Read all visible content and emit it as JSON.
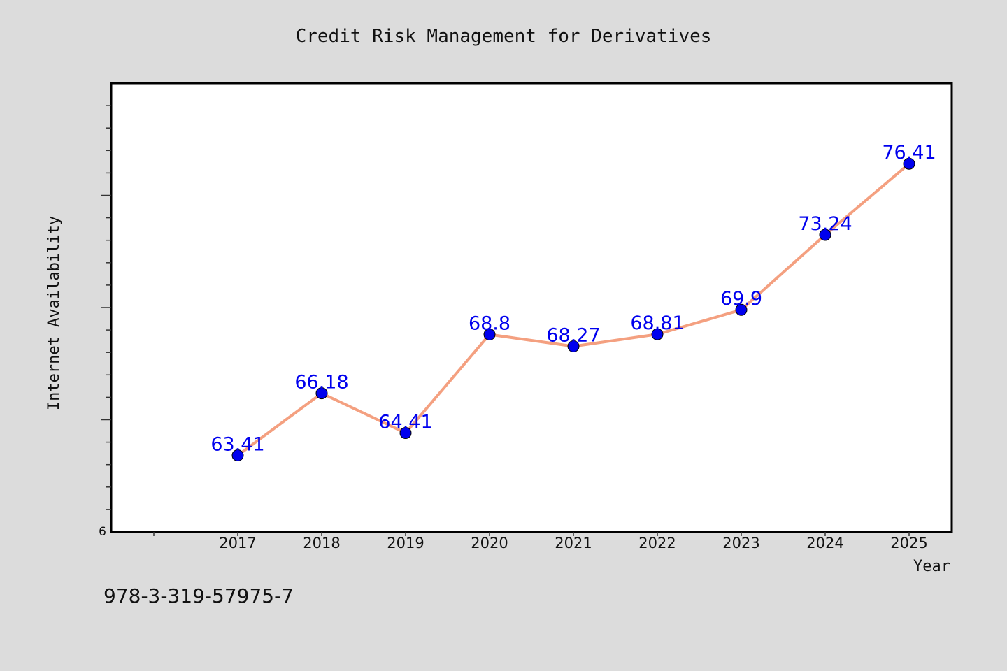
{
  "chart_data": {
    "type": "line",
    "title": "Credit Risk Management for Derivatives",
    "xlabel": "Year",
    "ylabel": "Internet Availability",
    "y_axis_bottom_label": "6",
    "categories": [
      "2017",
      "2018",
      "2019",
      "2020",
      "2021",
      "2022",
      "2023",
      "2024",
      "2025"
    ],
    "series": [
      {
        "values": [
          63.41,
          66.18,
          64.41,
          68.8,
          68.27,
          68.81,
          69.9,
          73.24,
          76.41
        ],
        "data_labels": [
          "63.41",
          "66.18",
          "64.41",
          "68.8",
          "68.27",
          "68.81",
          "69.9",
          "73.24",
          "76.41"
        ]
      }
    ],
    "ylim": [
      60,
      80
    ],
    "grid": false,
    "legend": "none",
    "footer_text": "978-3-319-57975-7",
    "colors": {
      "background": "#dcdcdc",
      "plot_background": "#ffffff",
      "line": "#f4a080",
      "marker": "#0000ee",
      "data_label": "#0000ee",
      "text": "#111111"
    }
  }
}
